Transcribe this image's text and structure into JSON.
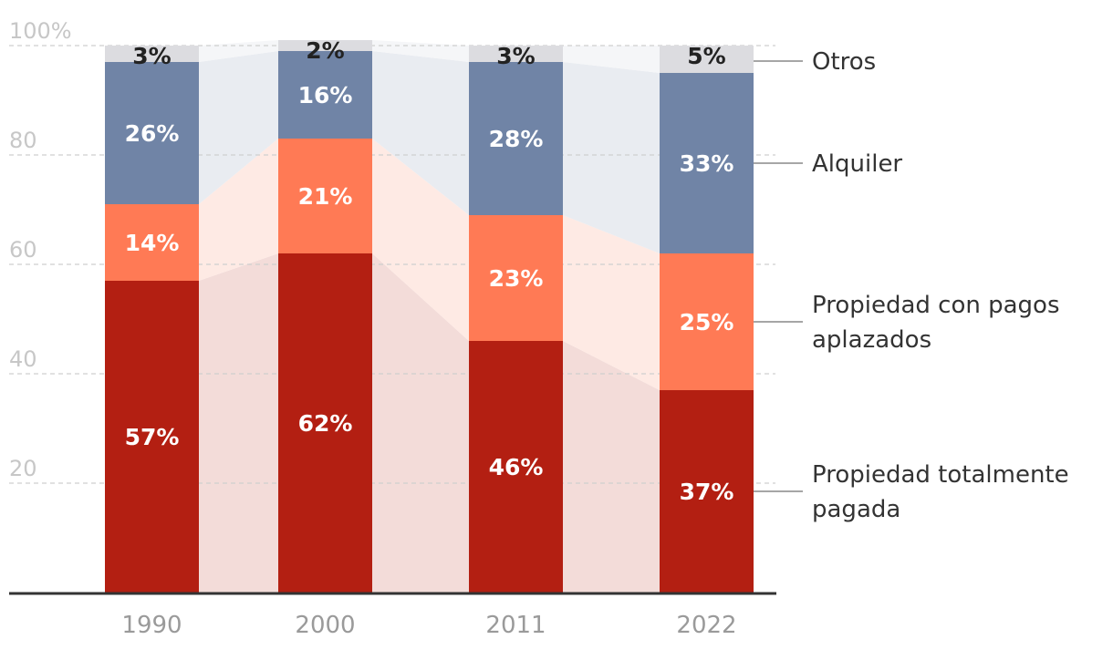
{
  "chart_data": {
    "type": "bar",
    "stacked": true,
    "categories": [
      "1990",
      "2000",
      "2011",
      "2022"
    ],
    "ylim": [
      0,
      100
    ],
    "yticks": [
      {
        "value": 100,
        "label": "100%"
      },
      {
        "value": 80,
        "label": "80"
      },
      {
        "value": 60,
        "label": "60"
      },
      {
        "value": 40,
        "label": "40"
      },
      {
        "value": 20,
        "label": "20"
      }
    ],
    "series": [
      {
        "name": "Propiedad totalmente pagada",
        "values": [
          57,
          62,
          46,
          37
        ],
        "labels": [
          "57%",
          "62%",
          "46%",
          "37%"
        ],
        "color": "#b31f12",
        "band_color": "#f3dcd9",
        "text_color": "#ffffff"
      },
      {
        "name": "Propiedad con pagos aplazados",
        "values": [
          14,
          21,
          23,
          25
        ],
        "labels": [
          "14%",
          "21%",
          "23%",
          "25%"
        ],
        "color": "#ff7a55",
        "band_color": "#feeae4",
        "text_color": "#ffffff"
      },
      {
        "name": "Alquiler",
        "values": [
          26,
          16,
          28,
          33
        ],
        "labels": [
          "26%",
          "16%",
          "28%",
          "33%"
        ],
        "color": "#7084a6",
        "band_color": "#e9ecf1",
        "text_color": "#ffffff"
      },
      {
        "name": "Otros",
        "values": [
          3,
          2,
          3,
          5
        ],
        "labels": [
          "3%",
          "2%",
          "3%",
          "5%"
        ],
        "color": "#dcdce0",
        "band_color": "#f5f6f8",
        "text_color": "#222222"
      }
    ],
    "legend": [
      {
        "series": 3,
        "lines": [
          "Otros"
        ]
      },
      {
        "series": 2,
        "lines": [
          "Alquiler"
        ]
      },
      {
        "series": 1,
        "lines": [
          "Propiedad con pagos",
          "aplazados"
        ]
      },
      {
        "series": 0,
        "lines": [
          "Propiedad totalmente",
          "pagada"
        ]
      }
    ],
    "title": "",
    "xlabel": "",
    "ylabel": ""
  }
}
